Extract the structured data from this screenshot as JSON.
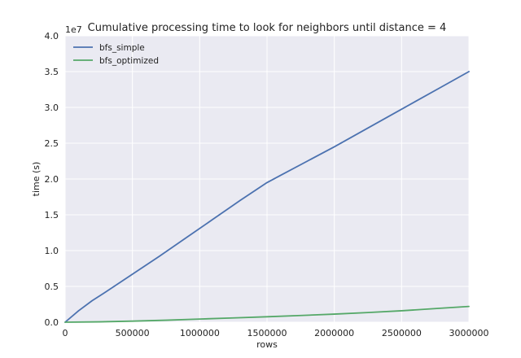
{
  "chart_data": {
    "type": "line",
    "title": "Cumulative processing time to look for neighbors until distance = 4",
    "xlabel": "rows",
    "ylabel": "time (s)",
    "y_offset_label": "1e7",
    "xlim": [
      0,
      3000000
    ],
    "ylim": [
      0,
      4.0
    ],
    "y_unit_multiplier": 10000000,
    "x_ticks": [
      0,
      500000,
      1000000,
      1500000,
      2000000,
      2500000,
      3000000
    ],
    "x_tick_labels": [
      "0",
      "500000",
      "1000000",
      "1500000",
      "2000000",
      "2500000",
      "3000000"
    ],
    "y_ticks": [
      0,
      0.5,
      1.0,
      1.5,
      2.0,
      2.5,
      3.0,
      3.5,
      4.0
    ],
    "y_tick_labels": [
      "0.0",
      "0.5",
      "1.0",
      "1.5",
      "2.0",
      "2.5",
      "3.0",
      "3.5",
      "4.0"
    ],
    "grid": true,
    "legend_position": "top-left",
    "background": "#eaeaf2",
    "series": [
      {
        "name": "bfs_simple",
        "color": "#4c72b0",
        "x": [
          0,
          100000,
          200000,
          300000,
          500000,
          700000,
          900000,
          1100000,
          1300000,
          1500000,
          1600000,
          1800000,
          2000000,
          2200000,
          2400000,
          2600000,
          2800000,
          3000000
        ],
        "y": [
          0,
          0.16,
          0.3,
          0.42,
          0.67,
          0.92,
          1.18,
          1.44,
          1.7,
          1.95,
          2.05,
          2.25,
          2.45,
          2.66,
          2.87,
          3.08,
          3.29,
          3.5
        ]
      },
      {
        "name": "bfs_optimized",
        "color": "#55a868",
        "x": [
          0,
          250000,
          500000,
          750000,
          1000000,
          1250000,
          1500000,
          1750000,
          2000000,
          2250000,
          2500000,
          2750000,
          3000000
        ],
        "y": [
          0,
          0.005,
          0.015,
          0.028,
          0.044,
          0.06,
          0.076,
          0.094,
          0.113,
          0.135,
          0.16,
          0.19,
          0.22
        ]
      }
    ]
  }
}
